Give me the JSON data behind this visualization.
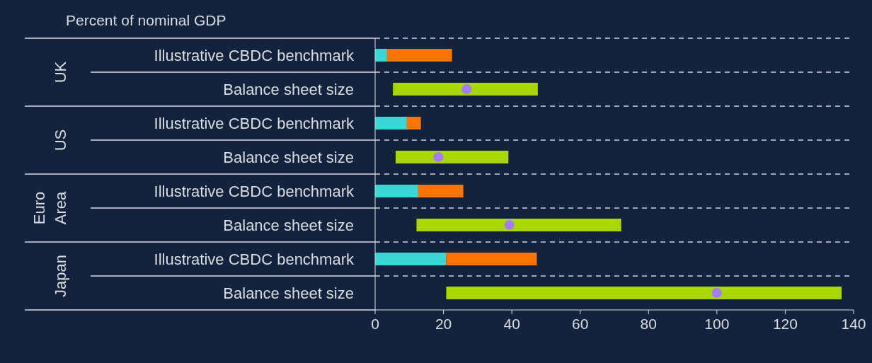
{
  "chart_data": {
    "type": "bar",
    "orientation": "horizontal",
    "stacked": true,
    "title": "Percent of nominal GDP",
    "categories": [
      "Illustrative CBDC benchmark",
      "Balance sheet size",
      "Illustrative CBDC benchmark",
      "Balance sheet size",
      "Illustrative CBDC benchmark",
      "Balance sheet size",
      "Illustrative CBDC benchmark",
      "Balance sheet size"
    ],
    "series": [
      {
        "color": "#3dd6d6",
        "values": [
          3.5,
          null,
          9.3,
          null,
          12.6,
          null,
          20.8,
          null
        ]
      },
      {
        "color": "#ff7300",
        "values": [
          19.0,
          null,
          4.1,
          null,
          13.2,
          null,
          26.5,
          null
        ]
      },
      {
        "color": "#a8d600",
        "base": [
          null,
          5.2,
          null,
          6.0,
          null,
          12.1,
          null,
          20.8
        ],
        "values": [
          null,
          42.4,
          null,
          33.0,
          null,
          59.9,
          null,
          115.7
        ]
      },
      {
        "type": "scatter",
        "color": "#a77bff",
        "marker": "circle",
        "values": [
          null,
          26.8,
          null,
          18.5,
          null,
          39.3,
          null,
          100
        ]
      }
    ],
    "annotations": [
      "UK",
      "US",
      "Euro Area",
      "Japan"
    ],
    "xlim": [
      0,
      140
    ],
    "xticks": [
      0,
      20,
      40,
      60,
      80,
      100,
      120,
      140
    ],
    "grid": "y",
    "legend": false
  }
}
